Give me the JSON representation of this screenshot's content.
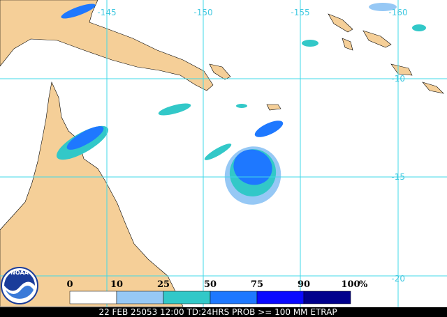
{
  "map": {
    "longitude_labels": [
      "-145",
      "-150",
      "-155",
      "-160"
    ],
    "latitude_labels": [
      "-10",
      "-15",
      "-20"
    ],
    "legend": {
      "labels": [
        "0",
        "10",
        "25",
        "50",
        "75",
        "90",
        "100"
      ],
      "unit": "%",
      "colors": [
        "#ffffff",
        "#96c8f5",
        "#32c8c8",
        "#1e78ff",
        "#0a0aff",
        "#00008c"
      ]
    },
    "logo": "NOAA",
    "footer": "22 FEB 25053 12:00 TD:24HRS PROB >= 100 MM ETRAP"
  }
}
